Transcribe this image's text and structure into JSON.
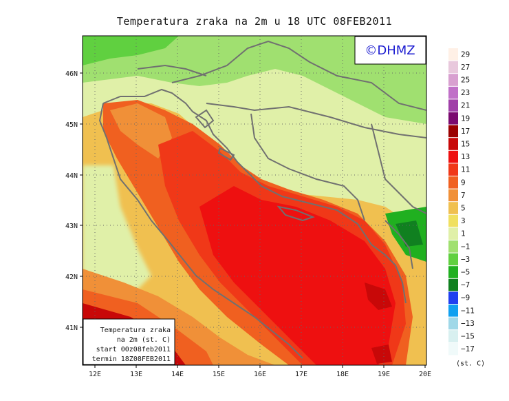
{
  "title": "Temperatura zraka na 2m u 18 UTC 08FEB2011",
  "logo": "©DHMZ",
  "info_box": {
    "line1": "Temperatura zraka",
    "line2": "na 2m (st. C)",
    "line3": "start 00z08feb2011",
    "line4": "termin 18Z08FEB2011"
  },
  "lon_labels": [
    "12E",
    "13E",
    "14E",
    "15E",
    "16E",
    "17E",
    "18E",
    "19E",
    "20E"
  ],
  "lat_labels": [
    "46N",
    "45N",
    "44N",
    "43N",
    "42N",
    "41N"
  ],
  "colorbar": {
    "unit": "(st. C)",
    "levels": [
      {
        "label": "29",
        "color": "#fff0e6"
      },
      {
        "label": "27",
        "color": "#e8c8dc"
      },
      {
        "label": "25",
        "color": "#d8a0d0"
      },
      {
        "label": "23",
        "color": "#c070c8"
      },
      {
        "label": "21",
        "color": "#a040a8"
      },
      {
        "label": "19",
        "color": "#7a0a70"
      },
      {
        "label": "17",
        "color": "#9a0000"
      },
      {
        "label": "15",
        "color": "#c80808"
      },
      {
        "label": "13",
        "color": "#ee1010"
      },
      {
        "label": "11",
        "color": "#f03818"
      },
      {
        "label": "9",
        "color": "#f06020"
      },
      {
        "label": "7",
        "color": "#f09038"
      },
      {
        "label": "5",
        "color": "#f0c050"
      },
      {
        "label": "3",
        "color": "#f0e060"
      },
      {
        "label": "1",
        "color": "#e0f0a8"
      },
      {
        "label": "−1",
        "color": "#a0e070"
      },
      {
        "label": "−3",
        "color": "#60d040"
      },
      {
        "label": "−5",
        "color": "#20b020"
      },
      {
        "label": "−7",
        "color": "#108020"
      },
      {
        "label": "−9",
        "color": "#2040f0"
      },
      {
        "label": "−11",
        "color": "#10a0f0"
      },
      {
        "label": "−13",
        "color": "#a0d8e8"
      },
      {
        "label": "−15",
        "color": "#d8f0f0"
      },
      {
        "label": "−17",
        "color": "#f0fafa"
      }
    ]
  }
}
